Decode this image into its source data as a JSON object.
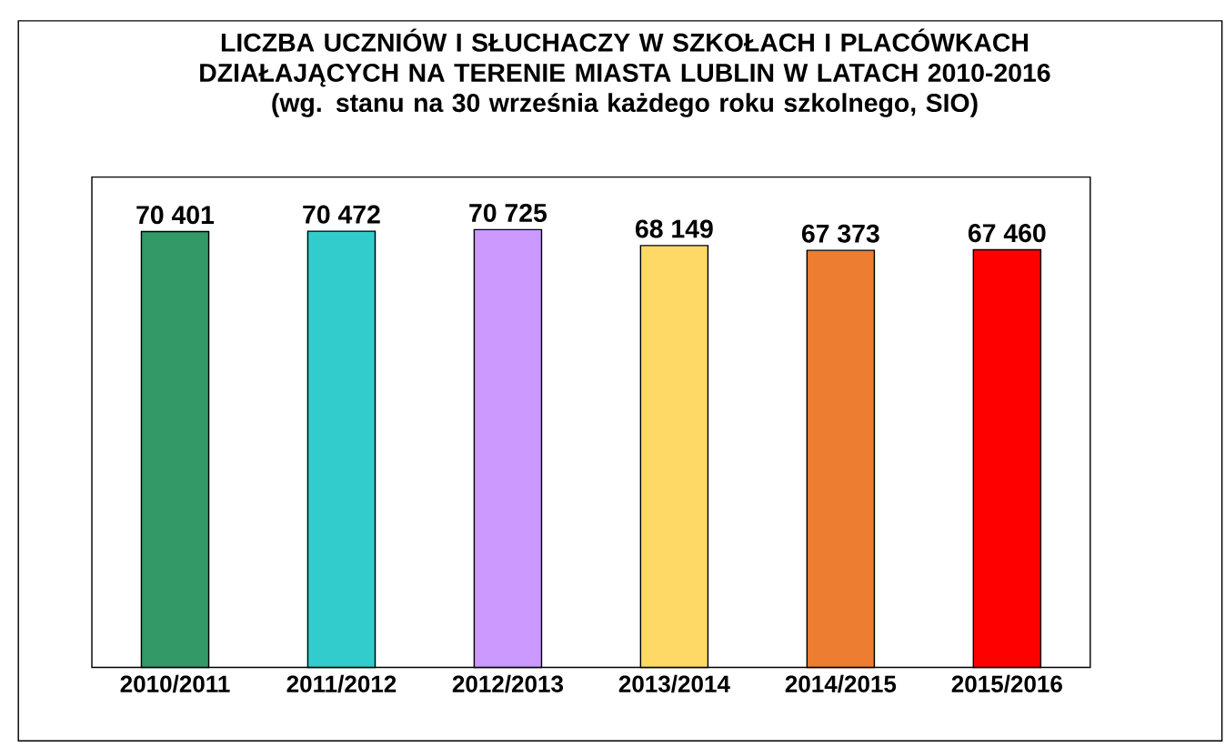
{
  "chart_data": {
    "type": "bar",
    "title": "LICZBA UCZNIÓW I SŁUCHACZY W SZKOŁACH I PLACÓWKACH DZIAŁAJĄCYCH NA TERENIE MIASTA LUBLIN W LATACH 2010-2016",
    "subtitle": "(wg. stanu na 30 września każdego roku szkolnego, SIO)",
    "categories": [
      "2010/2011",
      "2011/2012",
      "2012/2013",
      "2013/2014",
      "2014/2015",
      "2015/2016"
    ],
    "values": [
      70401,
      70472,
      70725,
      68149,
      67373,
      67460
    ],
    "value_labels": [
      "70 401",
      "70 472",
      "70 725",
      "68 149",
      "67 373",
      "67 460"
    ],
    "colors": [
      "#339966",
      "#33cccc",
      "#cc99ff",
      "#ffd966",
      "#ed7d31",
      "#ff0000"
    ]
  }
}
